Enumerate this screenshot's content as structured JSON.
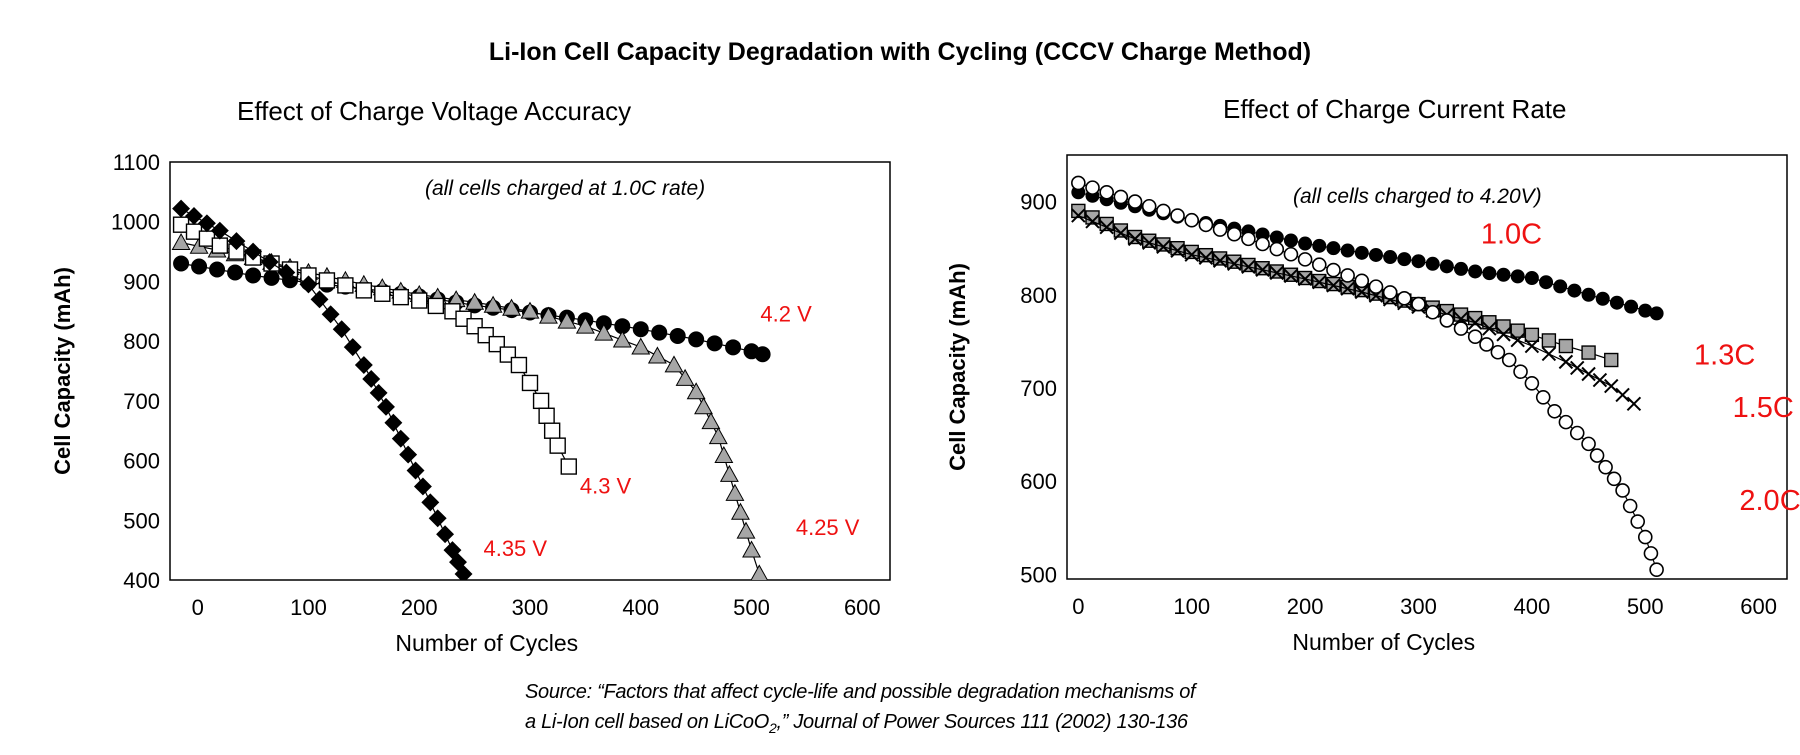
{
  "title": "Li-Ion Cell Capacity Degradation with Cycling (CCCV Charge Method)",
  "source": {
    "line1": "Source: “Factors that affect cycle-life and possible degradation mechanisms of",
    "line2_before": "a Li-Ion cell based on LiCoO",
    "line2_sub": "2",
    "line2_after": ",” Journal of Power Sources 111 (2002) 130-136"
  },
  "chart_data": [
    {
      "type": "line",
      "title": "Effect of Charge Voltage Accuracy",
      "annotation": "(all cells charged at 1.0C rate)",
      "xlabel": "Number of Cycles",
      "ylabel": "Cell Capacity (mAh)",
      "xlim": [
        -25,
        625
      ],
      "ylim": [
        400,
        1100
      ],
      "xticks": [
        0,
        100,
        200,
        300,
        400,
        500,
        600
      ],
      "yticks": [
        400,
        500,
        600,
        700,
        800,
        900,
        1000,
        1100
      ],
      "grid": false,
      "series": [
        {
          "name": "4.2 V",
          "marker": "circle",
          "fill": "#000000",
          "label_color": "#ee1111",
          "points": [
            [
              -15,
              930
            ],
            [
              50,
              910
            ],
            [
              100,
              898
            ],
            [
              150,
              888
            ],
            [
              200,
              875
            ],
            [
              250,
              860
            ],
            [
              300,
              848
            ],
            [
              350,
              835
            ],
            [
              400,
              820
            ],
            [
              450,
              803
            ],
            [
              500,
              783
            ],
            [
              510,
              778
            ]
          ]
        },
        {
          "name": "4.25 V",
          "marker": "triangle",
          "fill": "#a6a6a6",
          "label_color": "#ee1111",
          "points": [
            [
              -15,
              965
            ],
            [
              50,
              940
            ],
            [
              100,
              915
            ],
            [
              150,
              895
            ],
            [
              200,
              878
            ],
            [
              250,
              865
            ],
            [
              300,
              850
            ],
            [
              350,
              825
            ],
            [
              400,
              790
            ],
            [
              430,
              760
            ],
            [
              450,
              715
            ],
            [
              470,
              640
            ],
            [
              485,
              545
            ],
            [
              500,
              450
            ],
            [
              507,
              410
            ]
          ]
        },
        {
          "name": "4.3 V",
          "marker": "square",
          "fill": "#ffffff",
          "label_color": "#ee1111",
          "points": [
            [
              -15,
              995
            ],
            [
              20,
              960
            ],
            [
              50,
              940
            ],
            [
              100,
              910
            ],
            [
              150,
              885
            ],
            [
              200,
              868
            ],
            [
              230,
              850
            ],
            [
              250,
              825
            ],
            [
              270,
              795
            ],
            [
              290,
              760
            ],
            [
              310,
              700
            ],
            [
              325,
              625
            ],
            [
              335,
              590
            ]
          ]
        },
        {
          "name": "4.35 V",
          "marker": "diamond",
          "fill": "#000000",
          "label_color": "#ee1111",
          "points": [
            [
              -15,
              1022
            ],
            [
              20,
              985
            ],
            [
              50,
              950
            ],
            [
              80,
              915
            ],
            [
              100,
              895
            ],
            [
              110,
              870
            ],
            [
              130,
              820
            ],
            [
              150,
              760
            ],
            [
              170,
              690
            ],
            [
              190,
              610
            ],
            [
              210,
              530
            ],
            [
              230,
              450
            ],
            [
              240,
              410
            ]
          ]
        }
      ],
      "labels": [
        {
          "series": "4.2 V",
          "x": 508,
          "y": 833
        },
        {
          "series": "4.3 V",
          "x": 345,
          "y": 545
        },
        {
          "series": "4.25 V",
          "x": 540,
          "y": 475
        },
        {
          "series": "4.35 V",
          "x": 258,
          "y": 440
        }
      ]
    },
    {
      "type": "line",
      "title": "Effect of Charge Current Rate",
      "annotation": "(all cells charged to 4.20V)",
      "xlabel": "Number of Cycles",
      "ylabel": "Cell Capacity (mAh)",
      "xlim": [
        -10,
        625
      ],
      "ylim": [
        495,
        950
      ],
      "xticks": [
        0,
        100,
        200,
        300,
        400,
        500,
        600
      ],
      "yticks": [
        500,
        600,
        700,
        800,
        900
      ],
      "grid": false,
      "series": [
        {
          "name": "1.0C",
          "marker": "circle",
          "fill": "#000000",
          "label_color": "#ee1111",
          "points": [
            [
              0,
              910
            ],
            [
              50,
              895
            ],
            [
              100,
              880
            ],
            [
              150,
              868
            ],
            [
              200,
              855
            ],
            [
              250,
              845
            ],
            [
              300,
              836
            ],
            [
              350,
              825
            ],
            [
              400,
              818
            ],
            [
              450,
              800
            ],
            [
              500,
              783
            ],
            [
              510,
              780
            ]
          ]
        },
        {
          "name": "1.3C",
          "marker": "square",
          "fill": "#a6a6a6",
          "label_color": "#ee1111",
          "points": [
            [
              0,
              890
            ],
            [
              50,
              862
            ],
            [
              100,
              846
            ],
            [
              150,
              832
            ],
            [
              200,
              818
            ],
            [
              250,
              805
            ],
            [
              300,
              790
            ],
            [
              350,
              775
            ],
            [
              400,
              757
            ],
            [
              430,
              745
            ],
            [
              450,
              738
            ],
            [
              470,
              730
            ]
          ]
        },
        {
          "name": "1.5C",
          "marker": "x",
          "fill": "#000000",
          "label_color": "#ee1111",
          "points": [
            [
              0,
              885
            ],
            [
              50,
              860
            ],
            [
              100,
              843
            ],
            [
              150,
              830
            ],
            [
              200,
              817
            ],
            [
              250,
              803
            ],
            [
              300,
              787
            ],
            [
              350,
              770
            ],
            [
              400,
              745
            ],
            [
              430,
              728
            ],
            [
              450,
              715
            ],
            [
              470,
              702
            ],
            [
              490,
              683
            ]
          ]
        },
        {
          "name": "2.0C",
          "marker": "ring",
          "fill": "#ffffff",
          "label_color": "#ee1111",
          "points": [
            [
              0,
              920
            ],
            [
              50,
              900
            ],
            [
              100,
              880
            ],
            [
              150,
              860
            ],
            [
              200,
              838
            ],
            [
              250,
              815
            ],
            [
              300,
              790
            ],
            [
              350,
              755
            ],
            [
              380,
              730
            ],
            [
              400,
              705
            ],
            [
              420,
              675
            ],
            [
              450,
              640
            ],
            [
              480,
              590
            ],
            [
              500,
              540
            ],
            [
              510,
              505
            ]
          ]
        }
      ],
      "labels": [
        {
          "series": "1.0C",
          "x": 355,
          "y": 855
        },
        {
          "series": "1.3C",
          "x": 543,
          "y": 725
        },
        {
          "series": "1.5C",
          "x": 577,
          "y": 669
        },
        {
          "series": "2.0C",
          "x": 583,
          "y": 569
        }
      ]
    }
  ]
}
